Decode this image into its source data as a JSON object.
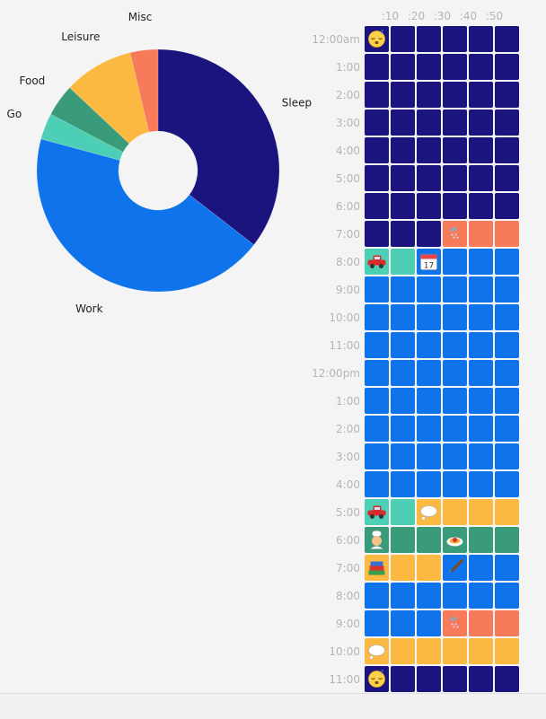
{
  "chart_data": [
    {
      "type": "pie",
      "categories": [
        "Sleep",
        "Work",
        "Go",
        "Food",
        "Leisure",
        "Misc"
      ],
      "values": [
        35.5,
        43.7,
        3.5,
        4.3,
        9.3,
        3.7
      ],
      "colors": [
        "#1b137e",
        "#0f74ec",
        "#4dcfb5",
        "#3a9b7b",
        "#fcb941",
        "#f77b5b"
      ],
      "donut": true
    },
    {
      "type": "heatmap",
      "xlabels": [
        ":10",
        ":20",
        ":30",
        ":40",
        ":50"
      ],
      "ylabels": [
        "12:00am",
        "1:00",
        "2:00",
        "3:00",
        "4:00",
        "5:00",
        "6:00",
        "7:00",
        "8:00",
        "9:00",
        "10:00",
        "11:00",
        "12:00pm",
        "1:00",
        "2:00",
        "3:00",
        "4:00",
        "5:00",
        "6:00",
        "7:00",
        "8:00",
        "9:00",
        "10:00",
        "11:00"
      ],
      "legend": {
        "S": {
          "label": "Sleep",
          "color": "#1b137e"
        },
        "W": {
          "label": "Work",
          "color": "#0f74ec"
        },
        "G": {
          "label": "Go",
          "color": "#4dcfb5"
        },
        "F": {
          "label": "Food",
          "color": "#3a9b7b"
        },
        "L": {
          "label": "Leisure",
          "color": "#fcb941"
        },
        "M": {
          "label": "Misc",
          "color": "#f77b5b"
        }
      },
      "rows": [
        [
          "S",
          "S",
          "S",
          "S",
          "S",
          "S"
        ],
        [
          "S",
          "S",
          "S",
          "S",
          "S",
          "S"
        ],
        [
          "S",
          "S",
          "S",
          "S",
          "S",
          "S"
        ],
        [
          "S",
          "S",
          "S",
          "S",
          "S",
          "S"
        ],
        [
          "S",
          "S",
          "S",
          "S",
          "S",
          "S"
        ],
        [
          "S",
          "S",
          "S",
          "S",
          "S",
          "S"
        ],
        [
          "S",
          "S",
          "S",
          "S",
          "S",
          "S"
        ],
        [
          "S",
          "S",
          "S",
          "M",
          "M",
          "M"
        ],
        [
          "G",
          "G",
          "W",
          "W",
          "W",
          "W"
        ],
        [
          "W",
          "W",
          "W",
          "W",
          "W",
          "W"
        ],
        [
          "W",
          "W",
          "W",
          "W",
          "W",
          "W"
        ],
        [
          "W",
          "W",
          "W",
          "W",
          "W",
          "W"
        ],
        [
          "W",
          "W",
          "W",
          "W",
          "W",
          "W"
        ],
        [
          "W",
          "W",
          "W",
          "W",
          "W",
          "W"
        ],
        [
          "W",
          "W",
          "W",
          "W",
          "W",
          "W"
        ],
        [
          "W",
          "W",
          "W",
          "W",
          "W",
          "W"
        ],
        [
          "W",
          "W",
          "W",
          "W",
          "W",
          "W"
        ],
        [
          "G",
          "G",
          "L",
          "L",
          "L",
          "L"
        ],
        [
          "F",
          "F",
          "F",
          "F",
          "F",
          "F"
        ],
        [
          "L",
          "L",
          "L",
          "W",
          "W",
          "W"
        ],
        [
          "W",
          "W",
          "W",
          "W",
          "W",
          "W"
        ],
        [
          "W",
          "W",
          "W",
          "M",
          "M",
          "M"
        ],
        [
          "L",
          "L",
          "L",
          "L",
          "L",
          "L"
        ],
        [
          "S",
          "S",
          "S",
          "S",
          "S",
          "S"
        ]
      ],
      "icons": [
        {
          "row": 0,
          "col": 0,
          "name": "sleeping-face-icon"
        },
        {
          "row": 7,
          "col": 3,
          "name": "shower-icon"
        },
        {
          "row": 8,
          "col": 0,
          "name": "car-icon"
        },
        {
          "row": 8,
          "col": 2,
          "name": "calendar-icon"
        },
        {
          "row": 17,
          "col": 0,
          "name": "car-icon"
        },
        {
          "row": 17,
          "col": 2,
          "name": "thought-bubble-icon"
        },
        {
          "row": 18,
          "col": 0,
          "name": "cook-icon"
        },
        {
          "row": 18,
          "col": 3,
          "name": "pasta-icon"
        },
        {
          "row": 19,
          "col": 0,
          "name": "books-icon"
        },
        {
          "row": 19,
          "col": 3,
          "name": "paintbrush-icon"
        },
        {
          "row": 21,
          "col": 3,
          "name": "shower-icon"
        },
        {
          "row": 22,
          "col": 0,
          "name": "thought-bubble-icon"
        },
        {
          "row": 23,
          "col": 0,
          "name": "sleeping-face-icon"
        }
      ]
    }
  ]
}
